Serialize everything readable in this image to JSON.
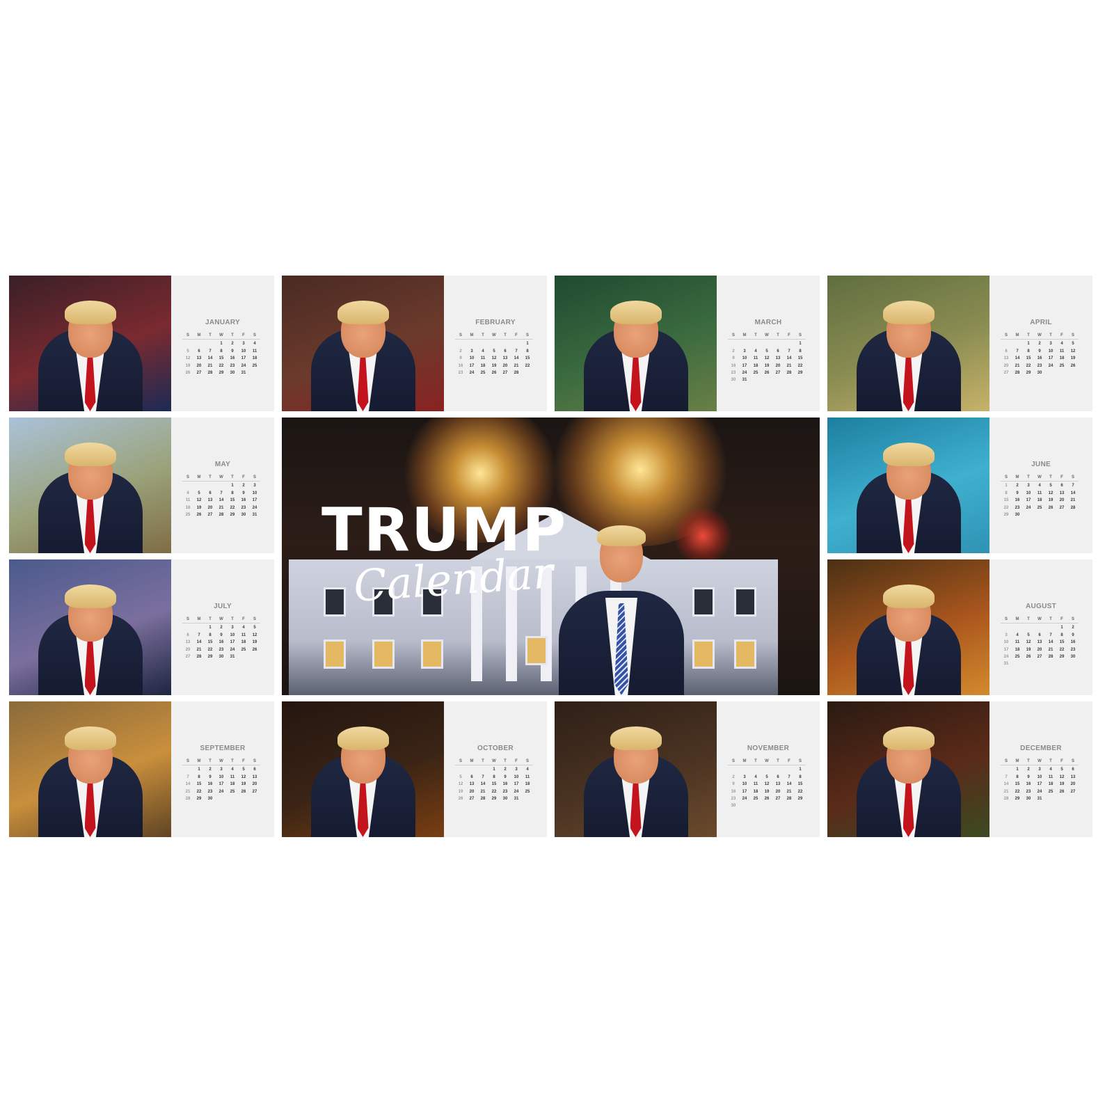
{
  "hero": {
    "title": "TRUMP",
    "subtitle": "Calendar"
  },
  "weekdays": [
    "S",
    "M",
    "T",
    "W",
    "T",
    "F",
    "S"
  ],
  "months": [
    {
      "name": "JANUARY",
      "start": 3,
      "days": 31,
      "scene": "fireworks-flags"
    },
    {
      "name": "FEBRUARY",
      "start": 6,
      "days": 28,
      "scene": "valentine-hearts"
    },
    {
      "name": "MARCH",
      "start": 6,
      "days": 31,
      "scene": "st-patricks-parade"
    },
    {
      "name": "APRIL",
      "start": 2,
      "days": 30,
      "scene": "easter-bunny-eggs"
    },
    {
      "name": "MAY",
      "start": 4,
      "days": 31,
      "scene": "memorial-flags-field"
    },
    {
      "name": "JUNE",
      "start": 0,
      "days": 30,
      "scene": "swimming-pool"
    },
    {
      "name": "JULY",
      "start": 2,
      "days": 31,
      "scene": "fireworks-july"
    },
    {
      "name": "AUGUST",
      "start": 5,
      "days": 31,
      "scene": "flower-field"
    },
    {
      "name": "SEPTEMBER",
      "start": 1,
      "days": 30,
      "scene": "autumn-trees"
    },
    {
      "name": "OCTOBER",
      "start": 3,
      "days": 31,
      "scene": "halloween-pumpkins"
    },
    {
      "name": "NOVEMBER",
      "start": 6,
      "days": 30,
      "scene": "thanksgiving-dinner"
    },
    {
      "name": "DECEMBER",
      "start": 1,
      "days": 31,
      "scene": "christmas-tree"
    }
  ],
  "scene_colors": {
    "fireworks-flags": [
      "#3a1f26",
      "#7a2a30",
      "#1b2a55"
    ],
    "valentine-hearts": [
      "#4a2a22",
      "#6b3a2c",
      "#8a2222"
    ],
    "st-patricks-parade": [
      "#1f4a30",
      "#3b6b3f",
      "#6a7f46"
    ],
    "easter-bunny-eggs": [
      "#5f6e3f",
      "#8b8d52",
      "#c7b26a"
    ],
    "memorial-flags-field": [
      "#aac2d9",
      "#9aa27a",
      "#7f6c45"
    ],
    "swimming-pool": [
      "#1d7fa0",
      "#3fb0cf",
      "#2f92b3"
    ],
    "fireworks-july": [
      "#4a5a8c",
      "#7b6f9e",
      "#1d2540"
    ],
    "flower-field": [
      "#4a3014",
      "#a9561d",
      "#d38a2d"
    ],
    "autumn-trees": [
      "#8a6a3a",
      "#c98f3c",
      "#5f4424"
    ],
    "halloween-pumpkins": [
      "#24160f",
      "#3a2415",
      "#7a3e12"
    ],
    "thanksgiving-dinner": [
      "#2e1f17",
      "#4a3322",
      "#6b4a2c"
    ],
    "christmas-tree": [
      "#2a1a12",
      "#5a2a18",
      "#3c4a22"
    ]
  }
}
